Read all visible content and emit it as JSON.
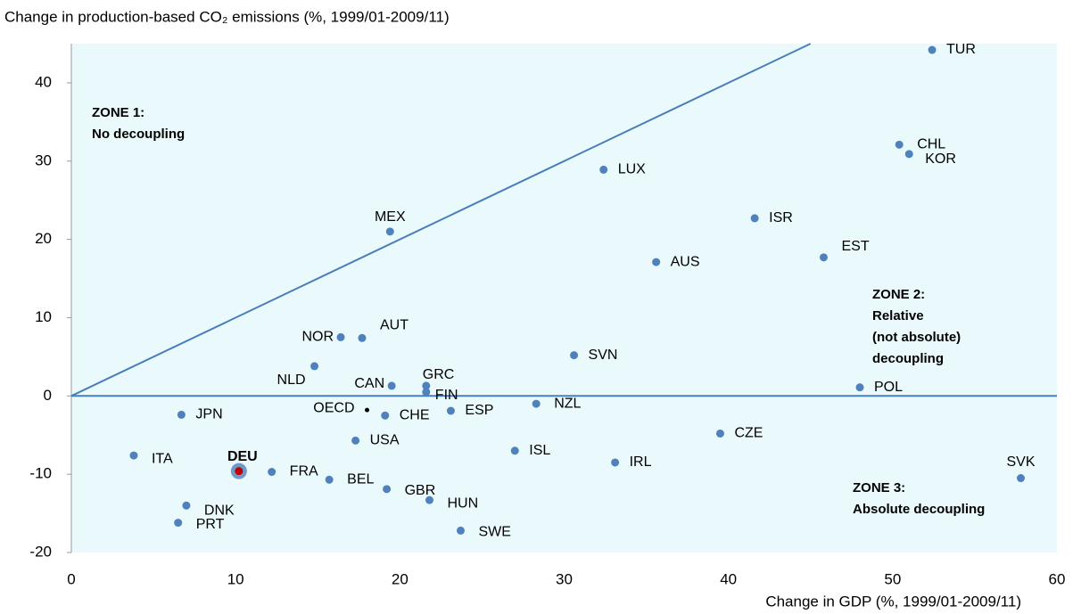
{
  "chart_data": {
    "type": "scatter",
    "title": "Change in production-based CO₂ emissions (%, 1999/01-2009/11)",
    "x_label": "Change in GDP (%, 1999/01-2009/11)",
    "xlim": [
      0,
      60
    ],
    "xticks": [
      0,
      10,
      20,
      30,
      40,
      50,
      60
    ],
    "ylim": [
      -20,
      45
    ],
    "yticks": [
      -20,
      -10,
      0,
      10,
      20,
      30,
      40
    ],
    "color": "#4f81bd",
    "background": "#eafafc",
    "line_color": "#4a7ebb",
    "points": [
      {
        "label": "TUR",
        "x": 52.4,
        "y": 44.2
      },
      {
        "label": "CHL",
        "x": 50.4,
        "y": 32.1
      },
      {
        "label": "KOR",
        "x": 51.0,
        "y": 30.9
      },
      {
        "label": "LUX",
        "x": 32.4,
        "y": 28.9
      },
      {
        "label": "MEX",
        "x": 19.4,
        "y": 21.0
      },
      {
        "label": "ISR",
        "x": 41.6,
        "y": 22.7
      },
      {
        "label": "EST",
        "x": 45.8,
        "y": 17.7
      },
      {
        "label": "AUS",
        "x": 35.6,
        "y": 17.1
      },
      {
        "label": "AUT",
        "x": 17.7,
        "y": 7.4
      },
      {
        "label": "NOR",
        "x": 16.4,
        "y": 7.5
      },
      {
        "label": "NLD",
        "x": 14.8,
        "y": 3.8
      },
      {
        "label": "SVN",
        "x": 30.6,
        "y": 5.2
      },
      {
        "label": "GRC",
        "x": 21.6,
        "y": 1.3
      },
      {
        "label": "CAN",
        "x": 19.5,
        "y": 1.3
      },
      {
        "label": "FIN",
        "x": 21.6,
        "y": 0.5
      },
      {
        "label": "POL",
        "x": 48.0,
        "y": 1.1
      },
      {
        "label": "NZL",
        "x": 28.3,
        "y": -1.0
      },
      {
        "label": "JPN",
        "x": 6.7,
        "y": -2.4
      },
      {
        "label": "OECD",
        "x": 18.0,
        "y": -1.8,
        "color": "#000000"
      },
      {
        "label": "CHE",
        "x": 19.1,
        "y": -2.5
      },
      {
        "label": "ESP",
        "x": 23.1,
        "y": -1.9
      },
      {
        "label": "CZE",
        "x": 39.5,
        "y": -4.8
      },
      {
        "label": "USA",
        "x": 17.3,
        "y": -5.7
      },
      {
        "label": "ISL",
        "x": 27.0,
        "y": -7.0
      },
      {
        "label": "IRL",
        "x": 33.1,
        "y": -8.5
      },
      {
        "label": "ITA",
        "x": 3.8,
        "y": -7.6
      },
      {
        "label": "DEU",
        "x": 10.2,
        "y": -9.6,
        "color": "#c00000"
      },
      {
        "label": "FRA",
        "x": 12.2,
        "y": -9.7
      },
      {
        "label": "BEL",
        "x": 15.7,
        "y": -10.7
      },
      {
        "label": "GBR",
        "x": 19.2,
        "y": -11.9
      },
      {
        "label": "HUN",
        "x": 21.8,
        "y": -13.3
      },
      {
        "label": "SVK",
        "x": 57.8,
        "y": -10.5
      },
      {
        "label": "DNK",
        "x": 7.0,
        "y": -14.0
      },
      {
        "label": "PRT",
        "x": 6.5,
        "y": -16.2
      },
      {
        "label": "SWE",
        "x": 23.7,
        "y": -17.2
      }
    ],
    "annotations": [
      {
        "lines": [
          "ZONE 1:",
          "No decoupling"
        ]
      },
      {
        "lines": [
          "ZONE 2:",
          "Relative",
          "(not absolute)",
          "decoupling"
        ]
      },
      {
        "lines": [
          "ZONE 3:",
          "Absolute  decoupling"
        ]
      }
    ]
  }
}
